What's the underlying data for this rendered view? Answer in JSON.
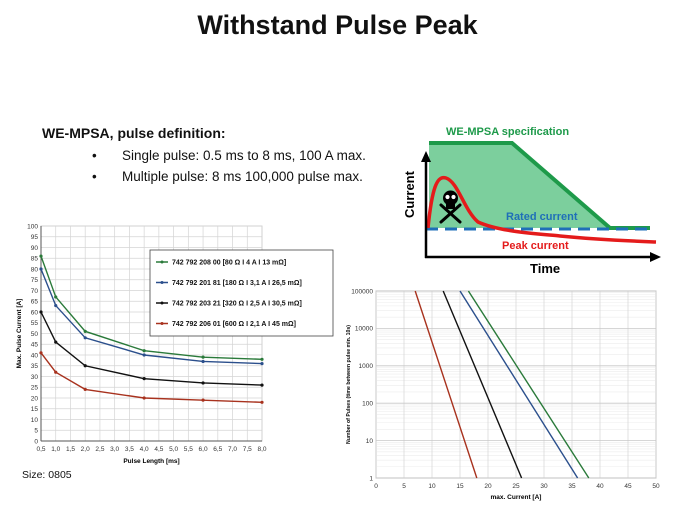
{
  "slide": {
    "title": "Withstand Pulse Peak",
    "heading": "WE-MPSA, pulse definition:",
    "bullets": [
      "Single pulse: 0.5 ms to 8 ms, 100 A max.",
      "Multiple pulse: 8 ms 100,000 pulse max."
    ],
    "size_note": "Size: 0805"
  },
  "diagram": {
    "spec_label": "WE-MPSA specification",
    "rated_label": "Rated current",
    "peak_label": "Peak current",
    "y_axis_label": "Current",
    "x_axis_label": "Time",
    "colors": {
      "spec": "#1e9a4a",
      "spec_fill": "#7ccf9d",
      "rated": "#1f6fb8",
      "peak": "#e41b1b"
    },
    "icon": "skull-crossbones-icon"
  },
  "chart_data": [
    {
      "type": "line",
      "xlabel": "Pulse Length [ms]",
      "ylabel": "Max. Pulse Current [A]",
      "x": [
        0.5,
        1.0,
        2.0,
        4.0,
        6.0,
        8.0
      ],
      "xticks": [
        "0,5",
        "1,0",
        "1,5",
        "2,0",
        "2,5",
        "3,0",
        "3,5",
        "4,0",
        "4,5",
        "5,0",
        "5,5",
        "6,0",
        "6,5",
        "7,0",
        "7,5",
        "8,0"
      ],
      "xlim": [
        0.5,
        8.0
      ],
      "ylim": [
        0,
        100
      ],
      "yticks": [
        0,
        5,
        10,
        15,
        20,
        25,
        30,
        35,
        40,
        45,
        50,
        55,
        60,
        65,
        70,
        75,
        80,
        85,
        90,
        95,
        100
      ],
      "grid": true,
      "legend": "top-right",
      "series": [
        {
          "name": "742 792 208 00 [80 Ω I 4 A I 13 mΩ]",
          "color": "#2a7a3a",
          "values": [
            86,
            67,
            51,
            42,
            39,
            38
          ]
        },
        {
          "name": "742 792 201 81 [180 Ω I 3,1 A I 26,5 mΩ]",
          "color": "#2b4f8c",
          "values": [
            80,
            63,
            48,
            40,
            37,
            36
          ]
        },
        {
          "name": "742 792 203 21 [320 Ω I 2,5 A I 30,5 mΩ]",
          "color": "#111111",
          "values": [
            60,
            46,
            35,
            29,
            27,
            26
          ]
        },
        {
          "name": "742 792 206 01 [600 Ω I 2,1 A I 45 mΩ]",
          "color": "#a8321e",
          "values": [
            41,
            32,
            24,
            20,
            19,
            18
          ]
        }
      ]
    },
    {
      "type": "line",
      "xlabel": "max. Current [A]",
      "ylabel": "Number of Pulses (time between pulse min. 10s)",
      "xlim": [
        0,
        50
      ],
      "xticks": [
        "0",
        "5",
        "10",
        "15",
        "20",
        "25",
        "30",
        "35",
        "40",
        "45",
        "50"
      ],
      "yscale": "log",
      "ylim": [
        1,
        100000
      ],
      "yticks": [
        "1",
        "10",
        "100",
        "1000",
        "10000",
        "100000"
      ],
      "grid": true,
      "series": [
        {
          "color": "#a8321e",
          "points": [
            [
              7,
              100000
            ],
            [
              18,
              1
            ]
          ]
        },
        {
          "color": "#111111",
          "points": [
            [
              12,
              100000
            ],
            [
              26,
              1
            ]
          ]
        },
        {
          "color": "#2b4f8c",
          "points": [
            [
              15,
              100000
            ],
            [
              36,
              1
            ]
          ]
        },
        {
          "color": "#2a7a3a",
          "points": [
            [
              16.5,
              100000
            ],
            [
              38,
              1
            ]
          ]
        }
      ]
    }
  ]
}
